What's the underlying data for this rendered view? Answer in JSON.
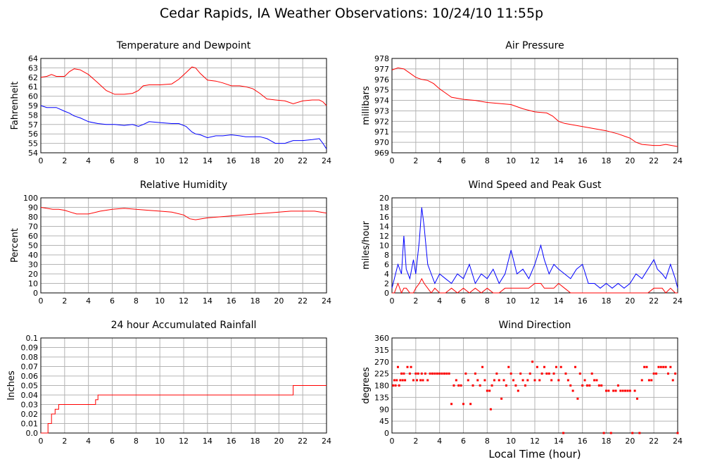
{
  "page": {
    "title": "Cedar Rapids, IA Weather Observations: 10/24/10 11:55p",
    "xlabel": "Local Time (hour)"
  },
  "colors": {
    "red": "#ff0000",
    "blue": "#0000ff",
    "grid": "#b4b4b4"
  },
  "chart_data": [
    {
      "id": "temp",
      "type": "line",
      "title": "Temperature and Dewpoint",
      "ylabel": "Fahrenheit",
      "xlim": [
        0,
        24
      ],
      "ylim": [
        54,
        64
      ],
      "xticks": [
        0,
        2,
        4,
        6,
        8,
        10,
        12,
        14,
        16,
        18,
        20,
        22,
        24
      ],
      "yticks": [
        54,
        55,
        56,
        57,
        58,
        59,
        60,
        61,
        62,
        63,
        64
      ],
      "grid": true,
      "x": [
        0,
        0.5,
        0.9,
        1.3,
        2,
        2.4,
        2.8,
        3.3,
        4,
        4.8,
        5.5,
        6.2,
        7,
        7.7,
        8.2,
        8.6,
        9.1,
        10,
        11,
        11.6,
        12.2,
        12.7,
        13,
        13.4,
        14,
        14.7,
        15.3,
        16,
        16.7,
        17.2,
        17.8,
        18.4,
        19,
        19.7,
        20.5,
        21.2,
        22,
        22.8,
        23.4,
        23.7,
        24
      ],
      "series": [
        {
          "name": "",
          "color": "red",
          "values": [
            62,
            62.1,
            62.3,
            62.1,
            62.1,
            62.6,
            62.9,
            62.8,
            62.3,
            61.4,
            60.6,
            60.2,
            60.2,
            60.3,
            60.6,
            61.1,
            61.2,
            61.2,
            61.3,
            61.8,
            62.5,
            63.1,
            63.0,
            62.4,
            61.7,
            61.6,
            61.4,
            61.1,
            61.1,
            61.0,
            60.8,
            60.3,
            59.7,
            59.6,
            59.5,
            59.2,
            59.5,
            59.6,
            59.6,
            59.4,
            59.0
          ]
        },
        {
          "name": "",
          "color": "blue",
          "values": [
            59.0,
            58.8,
            58.8,
            58.8,
            58.4,
            58.2,
            57.9,
            57.7,
            57.3,
            57.1,
            57.0,
            57.0,
            56.9,
            57.0,
            56.8,
            57.0,
            57.3,
            57.2,
            57.1,
            57.1,
            56.8,
            56.2,
            56.0,
            55.9,
            55.6,
            55.8,
            55.8,
            55.9,
            55.8,
            55.7,
            55.7,
            55.7,
            55.5,
            55.0,
            55.0,
            55.3,
            55.3,
            55.4,
            55.5,
            55.0,
            54.4
          ]
        }
      ]
    },
    {
      "id": "pres",
      "type": "line",
      "title": "Air Pressure",
      "ylabel": "millibars",
      "xlim": [
        0,
        24
      ],
      "ylim": [
        969,
        978
      ],
      "xticks": [
        0,
        2,
        4,
        6,
        8,
        10,
        12,
        14,
        16,
        18,
        20,
        22,
        24
      ],
      "yticks": [
        969,
        970,
        971,
        972,
        973,
        974,
        975,
        976,
        977,
        978
      ],
      "grid": true,
      "x": [
        0,
        0.5,
        1,
        1.5,
        2,
        2.5,
        3,
        3.5,
        4,
        4.5,
        5,
        6,
        7,
        8,
        9,
        10,
        11,
        12,
        13,
        13.5,
        14,
        14.5,
        15,
        16,
        17,
        18,
        19,
        20,
        20.5,
        21,
        22,
        22.5,
        23,
        23.5,
        24
      ],
      "series": [
        {
          "name": "",
          "color": "red",
          "values": [
            976.9,
            977.1,
            977.0,
            976.6,
            976.2,
            976.0,
            975.9,
            975.6,
            975.1,
            974.7,
            974.3,
            974.1,
            974.0,
            973.8,
            973.7,
            973.6,
            973.2,
            972.9,
            972.8,
            972.5,
            972.0,
            971.8,
            971.7,
            971.5,
            971.3,
            971.1,
            970.8,
            970.4,
            970.0,
            969.8,
            969.7,
            969.7,
            969.8,
            969.7,
            969.6
          ]
        }
      ]
    },
    {
      "id": "rh",
      "type": "line",
      "title": "Relative Humidity",
      "ylabel": "Percent",
      "xlim": [
        0,
        24
      ],
      "ylim": [
        0,
        100
      ],
      "xticks": [
        0,
        2,
        4,
        6,
        8,
        10,
        12,
        14,
        16,
        18,
        20,
        22,
        24
      ],
      "yticks": [
        0,
        10,
        20,
        30,
        40,
        50,
        60,
        70,
        80,
        90,
        100
      ],
      "grid": true,
      "x": [
        0,
        0.5,
        1,
        1.5,
        2,
        2.5,
        3,
        4,
        5,
        6,
        7,
        8,
        9,
        10,
        11,
        12,
        12.5,
        13,
        14,
        15,
        16,
        17,
        18,
        19,
        20,
        21,
        22,
        23,
        23.5,
        24
      ],
      "series": [
        {
          "name": "",
          "color": "red",
          "values": [
            90,
            89,
            88,
            88,
            87,
            85,
            83,
            83,
            86,
            88,
            89,
            88,
            87,
            86,
            85,
            82,
            78,
            77,
            79,
            80,
            81,
            82,
            83,
            84,
            85,
            86,
            86,
            86,
            85,
            84
          ]
        }
      ]
    },
    {
      "id": "wind",
      "type": "line",
      "title": "Wind Speed and Peak Gust",
      "ylabel": "miles/hour",
      "xlim": [
        0,
        24
      ],
      "ylim": [
        0,
        20
      ],
      "xticks": [
        0,
        2,
        4,
        6,
        8,
        10,
        12,
        14,
        16,
        18,
        20,
        22,
        24
      ],
      "yticks": [
        0,
        2,
        4,
        6,
        8,
        10,
        12,
        14,
        16,
        18,
        20
      ],
      "grid": true,
      "x": [
        0,
        0.2,
        0.5,
        0.8,
        1.0,
        1.2,
        1.5,
        1.8,
        2.0,
        2.3,
        2.5,
        2.7,
        3.0,
        3.3,
        3.6,
        4.0,
        4.5,
        5.0,
        5.5,
        6.0,
        6.5,
        7.0,
        7.5,
        8.0,
        8.5,
        9.0,
        9.5,
        10.0,
        10.5,
        11.0,
        11.5,
        12.0,
        12.5,
        12.8,
        13.2,
        13.6,
        14.0,
        14.5,
        15.0,
        15.5,
        16.0,
        16.5,
        17.0,
        17.5,
        18.0,
        18.5,
        19.0,
        19.5,
        20.0,
        20.5,
        21.0,
        21.5,
        22.0,
        22.3,
        22.7,
        23.0,
        23.4,
        23.8,
        24.0
      ],
      "series": [
        {
          "name": "",
          "color": "red",
          "values": [
            0,
            0,
            2,
            0,
            1,
            1,
            0,
            0,
            1,
            2,
            3,
            2,
            1,
            0,
            1,
            0,
            0,
            1,
            0,
            1,
            0,
            1,
            0,
            1,
            0,
            0,
            1,
            1,
            1,
            1,
            1,
            2,
            2,
            1,
            1,
            1,
            2,
            1,
            0,
            0,
            0,
            0,
            0,
            0,
            0,
            0,
            0,
            0,
            0,
            0,
            0,
            0,
            1,
            1,
            1,
            0,
            1,
            0,
            0
          ]
        },
        {
          "name": "",
          "color": "blue",
          "values": [
            1,
            3,
            6,
            4,
            12,
            5,
            3,
            7,
            4,
            11,
            18,
            14,
            6,
            4,
            2,
            4,
            3,
            2,
            4,
            3,
            6,
            2,
            4,
            3,
            5,
            2,
            4,
            9,
            4,
            5,
            3,
            6,
            10,
            7,
            4,
            6,
            5,
            4,
            3,
            5,
            6,
            2,
            2,
            1,
            2,
            1,
            2,
            1,
            2,
            4,
            3,
            5,
            7,
            5,
            4,
            3,
            6,
            3,
            1
          ]
        }
      ]
    },
    {
      "id": "rain",
      "type": "line",
      "title": "24 hour Accumulated Rainfall",
      "ylabel": "Inches",
      "xlim": [
        0,
        24
      ],
      "ylim": [
        0,
        0.1
      ],
      "xticks": [
        0,
        2,
        4,
        6,
        8,
        10,
        12,
        14,
        16,
        18,
        20,
        22,
        24
      ],
      "yticks": [
        0.0,
        0.01,
        0.02,
        0.03,
        0.04,
        0.05,
        0.06,
        0.07,
        0.08,
        0.09,
        0.1
      ],
      "ytick_labels": [
        "0.0",
        "0.01",
        "0.02",
        "0.03",
        "0.04",
        "0.05",
        "0.06",
        "0.07",
        "0.08",
        "0.09",
        "0.1"
      ],
      "grid": true,
      "x": [
        0,
        0.6,
        0.6,
        0.9,
        0.9,
        1.2,
        1.2,
        1.5,
        1.5,
        4.6,
        4.6,
        4.8,
        4.8,
        21.2,
        21.2,
        24
      ],
      "series": [
        {
          "name": "",
          "color": "red",
          "values": [
            0,
            0,
            0.01,
            0.01,
            0.02,
            0.02,
            0.025,
            0.025,
            0.03,
            0.03,
            0.035,
            0.035,
            0.04,
            0.04,
            0.05,
            0.05
          ]
        }
      ]
    },
    {
      "id": "wdir",
      "type": "scatter",
      "title": "Wind Direction",
      "ylabel": "degrees",
      "xlim": [
        0,
        24
      ],
      "ylim": [
        0,
        360
      ],
      "xticks": [
        0,
        2,
        4,
        6,
        8,
        10,
        12,
        14,
        16,
        18,
        20,
        22,
        24
      ],
      "yticks": [
        0,
        45,
        90,
        135,
        180,
        225,
        270,
        315,
        360
      ],
      "grid": true,
      "series": [
        {
          "name": "",
          "color": "red",
          "x": [
            0.1,
            0.2,
            0.3,
            0.4,
            0.5,
            0.6,
            0.7,
            0.8,
            0.9,
            1.0,
            1.1,
            1.3,
            1.5,
            1.6,
            1.8,
            2.0,
            2.1,
            2.2,
            2.4,
            2.5,
            2.6,
            2.8,
            3.0,
            3.2,
            3.4,
            3.6,
            3.8,
            4.0,
            4.2,
            4.4,
            4.6,
            4.8,
            5.0,
            5.2,
            5.4,
            5.6,
            5.8,
            6.0,
            6.2,
            6.4,
            6.6,
            6.8,
            7.0,
            7.2,
            7.4,
            7.6,
            7.8,
            8.0,
            8.2,
            8.3,
            8.4,
            8.6,
            8.8,
            9.0,
            9.2,
            9.4,
            9.6,
            9.8,
            10.0,
            10.2,
            10.4,
            10.6,
            10.8,
            11.0,
            11.2,
            11.4,
            11.6,
            11.8,
            12.0,
            12.2,
            12.4,
            12.6,
            12.8,
            13.0,
            13.2,
            13.4,
            13.6,
            13.8,
            14.0,
            14.2,
            14.4,
            14.6,
            14.8,
            15.0,
            15.2,
            15.4,
            15.6,
            15.8,
            16.0,
            16.2,
            16.4,
            16.6,
            16.8,
            17.0,
            17.2,
            17.4,
            17.6,
            17.8,
            18.0,
            18.2,
            18.4,
            18.6,
            18.8,
            19.0,
            19.2,
            19.4,
            19.6,
            19.8,
            20.0,
            20.2,
            20.4,
            20.6,
            20.8,
            21.0,
            21.2,
            21.4,
            21.6,
            21.8,
            22.0,
            22.2,
            22.4,
            22.6,
            22.8,
            23.0,
            23.2,
            23.4,
            23.6,
            23.8,
            24.0
          ],
          "values": [
            180,
            200,
            180,
            200,
            250,
            180,
            200,
            225,
            200,
            225,
            200,
            250,
            225,
            250,
            200,
            225,
            200,
            225,
            200,
            225,
            200,
            225,
            200,
            225,
            225,
            225,
            225,
            225,
            225,
            225,
            225,
            225,
            110,
            180,
            200,
            180,
            180,
            110,
            225,
            200,
            110,
            180,
            225,
            200,
            180,
            250,
            200,
            160,
            160,
            90,
            180,
            200,
            225,
            200,
            130,
            200,
            180,
            250,
            225,
            200,
            180,
            160,
            225,
            200,
            180,
            200,
            225,
            270,
            200,
            250,
            200,
            225,
            250,
            225,
            225,
            200,
            225,
            250,
            200,
            250,
            0,
            225,
            200,
            180,
            160,
            250,
            130,
            225,
            180,
            200,
            180,
            180,
            225,
            200,
            200,
            180,
            180,
            0,
            160,
            160,
            0,
            160,
            160,
            180,
            160,
            160,
            160,
            160,
            160,
            0,
            160,
            130,
            0,
            200,
            250,
            250,
            200,
            200,
            225,
            225,
            250,
            250,
            250,
            250,
            225,
            250,
            200,
            225,
            0
          ]
        }
      ]
    }
  ]
}
